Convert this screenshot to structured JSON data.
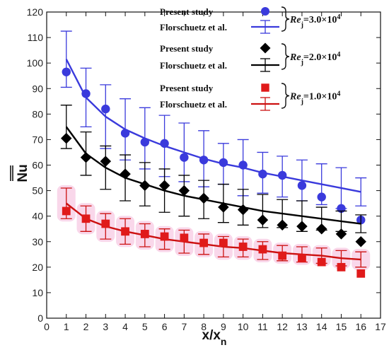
{
  "chart_data": {
    "type": "scatter",
    "xlabel": "x/x",
    "xlabel_sub": "n",
    "ylabel": "Nu",
    "xlim": [
      0,
      17
    ],
    "ylim": [
      0,
      120
    ],
    "xticks": [
      "0",
      "1",
      "2",
      "3",
      "4",
      "5",
      "6",
      "7",
      "8",
      "9",
      "10",
      "11",
      "12",
      "13",
      "14",
      "15",
      "16",
      "17"
    ],
    "yticks": [
      "0",
      "10",
      "20",
      "30",
      "40",
      "50",
      "60",
      "70",
      "80",
      "90",
      "100",
      "110",
      "120"
    ],
    "legend_placement": "top-right",
    "x": [
      1,
      2,
      3,
      4,
      5,
      6,
      7,
      8,
      9,
      10,
      11,
      12,
      13,
      14,
      15,
      16
    ],
    "groups": [
      {
        "re_label": "Re",
        "re_sub": "j",
        "re_value": "=3.0×10",
        "re_exp": "4",
        "color": "#3a3adc",
        "marker": "circle",
        "present_label": "Present study",
        "present_values": [
          96.5,
          88,
          82,
          72.5,
          69,
          68.5,
          63,
          62,
          61,
          60,
          56.5,
          56,
          52,
          47.5,
          43,
          38.5
        ],
        "florschuetz_label": "Florschuetz et al.",
        "florschuetz_values": [
          101.5,
          86.5,
          79,
          74,
          70.5,
          67.5,
          65,
          62.5,
          60.5,
          59,
          57,
          55.5,
          54,
          52.5,
          51,
          49.5
        ],
        "florschuetz_err": [
          11,
          11.5,
          12.5,
          12,
          12,
          12,
          11.5,
          11,
          8,
          11,
          8,
          8,
          8,
          8,
          8,
          5.5
        ]
      },
      {
        "re_label": "Re",
        "re_sub": "j",
        "re_value": "=2.0×10",
        "re_exp": "4",
        "color": "#000000",
        "marker": "diamond",
        "present_label": "Present study",
        "present_values": [
          70.5,
          63,
          61.5,
          56.5,
          52,
          52,
          50,
          47,
          43.5,
          42.5,
          38.5,
          36.5,
          36,
          35,
          33,
          30
        ],
        "florschuetz_label": "Florschuetz et al.",
        "florschuetz_values": [
          75,
          64.5,
          59,
          55,
          52.5,
          50,
          48,
          46.5,
          45,
          43.5,
          42,
          41,
          40,
          39,
          38,
          37
        ],
        "florschuetz_err": [
          8.5,
          8.5,
          8.5,
          9,
          8.5,
          8.5,
          8,
          7.5,
          7.5,
          7,
          6.5,
          5.5,
          6,
          4.5,
          4,
          3.5
        ]
      },
      {
        "re_label": "Re",
        "re_sub": "j",
        "re_value": "=1.0×10",
        "re_exp": "4",
        "color": "#cc1111",
        "marker": "square",
        "present_label": "Present study",
        "present_values": [
          42,
          39,
          37,
          34,
          33,
          32,
          31.5,
          29.5,
          29.5,
          28,
          27,
          24.5,
          23.5,
          22,
          20,
          17.5
        ],
        "florschuetz_label": "Florschuetz et al.",
        "florschuetz_values": [
          45,
          39,
          36,
          34,
          32.5,
          31,
          30,
          29,
          28,
          27.5,
          26.5,
          25.5,
          25,
          24.5,
          23.5,
          23
        ],
        "florschuetz_err": [
          6,
          5,
          5,
          5,
          4.5,
          4,
          4.5,
          4,
          4,
          3.5,
          3.5,
          3,
          3,
          3,
          3,
          3
        ]
      }
    ]
  }
}
